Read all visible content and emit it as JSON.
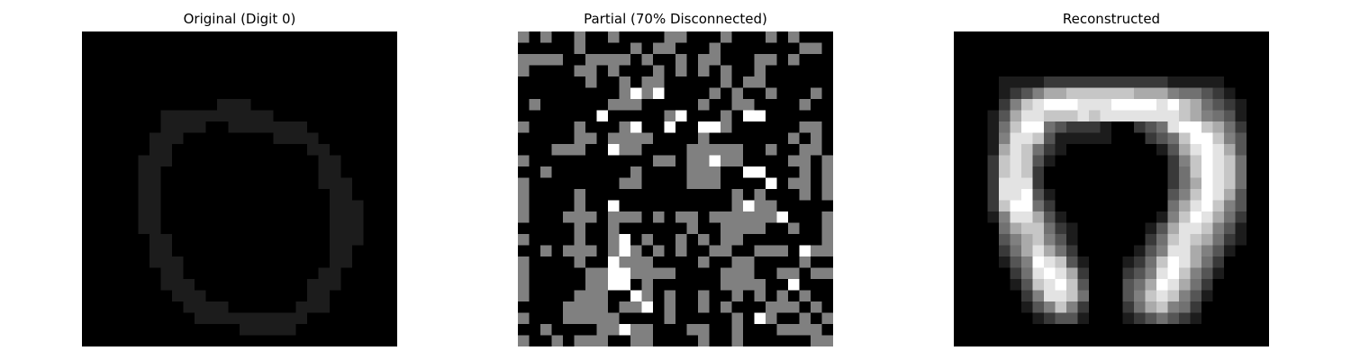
{
  "chart_data": [
    {
      "type": "heatmap",
      "title": "Original (Digit 0)",
      "colormap": "gray",
      "value_range": [
        0,
        1
      ],
      "axes_visible": false,
      "grid_size": [
        28,
        28
      ],
      "cells": [
        "0000000000000000000000000000",
        "0000000000000000000000000000",
        "0000000000000000000000000000",
        "0000000000000000000000000000",
        "0000000000000000000000000000",
        "0000000000000000000000000000",
        "0000000000001110000000000000",
        "0000000111111111100000000000",
        "0000000111100111111100000000",
        "0000001110000000011110000000",
        "0000001100000000000011000000",
        "0000011100000000000001100000",
        "0000011000000000000001100000",
        "0000011000000000000001110000",
        "0000011000000000000000110000",
        "0000011000000000000000111000",
        "0000011000000000000000111000",
        "0000011000000000000000111000",
        "0000001100000000000000111000",
        "0000001100000000000000110000",
        "0000001110000000000000110000",
        "0000000110000000000001100000",
        "0000000111000000000011100000",
        "0000000011100000000011000000",
        "0000000001111000000111000000",
        "0000000000111111111100000000",
        "0000000000000011111000000000",
        "0000000000000000000000000000"
      ]
    },
    {
      "type": "heatmap",
      "title": "Partial (70% Disconnected)",
      "colormap": "gray",
      "value_range": [
        0,
        1
      ],
      "axes_visible": false,
      "grid_size": [
        28,
        28
      ],
      "note_levels": "0 = black, 5 = gray (disconnected), 9 = white",
      "cells": [
        "5050050050000550005000505000",
        "0000050000505500050000000550",
        "5555005555050050550005505000",
        "5000055050005050505005000000",
        "0000005005055000005055000000",
        "0000000005959000050500500050",
        "0500000055500000500550000500",
        "0000000900000590005099000000",
        "5000050005900900995000000550",
        "0000055055550000500000005050",
        "0005550095500005555500500550",
        "5000000000005505595500005505",
        "0050000000500005550099000505",
        "5000000005500005550000905505",
        "5000050000000000000505000505",
        "5000050090000000000595500000",
        "5000555055505055055555590005",
        "0000050050000005005555005005",
        "5000050059050050505500000005",
        "0050555059505050055005550955",
        "5000050095550000500550000500",
        "5000005599555500005550055055",
        "5000005599050000005555009000",
        "5000055500950500500505050500",
        "0000555505590500505000555050",
        "5000555550000500000509500505",
        "0050000559550005500500055550",
        "5005055500550000500500000055"
      ]
    },
    {
      "type": "heatmap",
      "title": "Reconstructed",
      "colormap": "gray",
      "value_range": [
        0,
        1
      ],
      "axes_visible": false,
      "grid_size": [
        28,
        28
      ],
      "note_levels": "digits 0-9 map to brightness 0.0-1.0",
      "cells": [
        "0000000000000000000000000000",
        "0000000000000000000000000000",
        "0000000000000000000000000000",
        "0000000000000000000000000000",
        "0000111122222222222111110000",
        "0000123566777777666544321000",
        "0000257899988899998976432100",
        "0001368877787888888876543100",
        "0001479943222100234899764200",
        "0001588731111100023479975300",
        "0001687421000000001368986300",
        "0002787310000000000257987400",
        "0002787200000000000247987400",
        "0002888200000000000246987400",
        "0002889310000000000357986300",
        "0002799420000000000468975300",
        "0001588631000000001579864200",
        "0000467742100000013688753100",
        "0000356753100000024787642100",
        "0000246864200000135886531000",
        "0000135987310001247986420000",
        "0000024898620002358975310000",
        "0000013789730003469864200000",
        "0000002588740003578753100000",
        "0000001357520002467542000000",
        "0000000123310001234321000000",
        "0000000000000000000000000000",
        "0000000000000000000000000000"
      ]
    }
  ]
}
